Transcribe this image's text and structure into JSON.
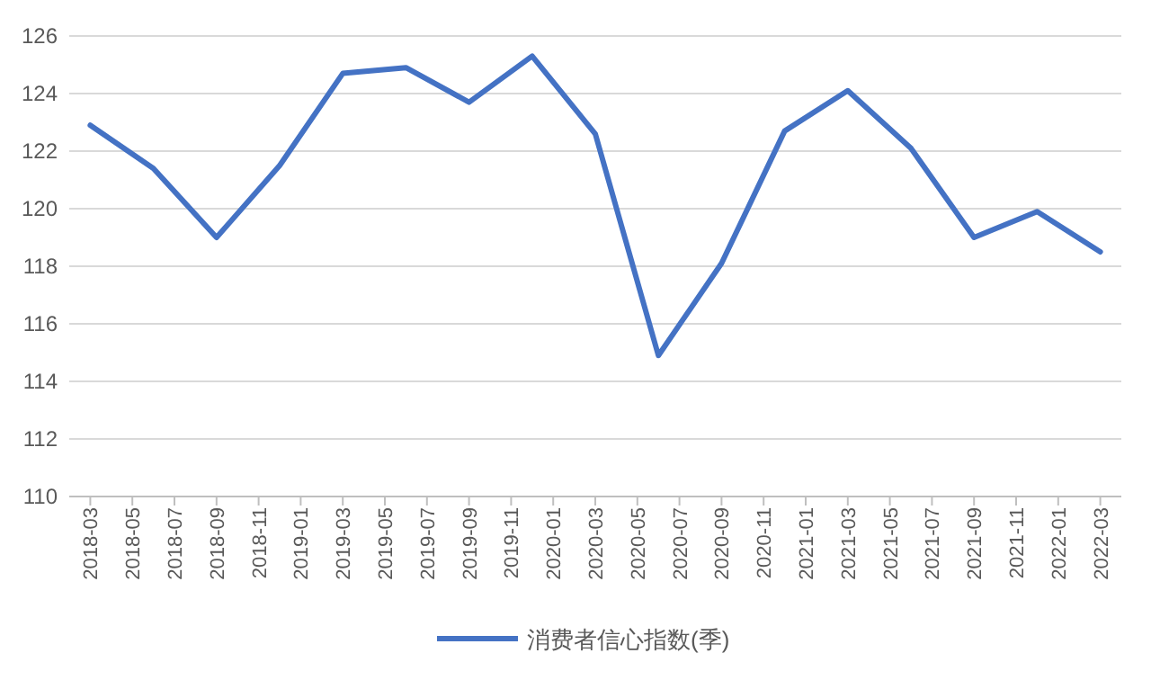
{
  "chart_data": {
    "type": "line",
    "x": [
      "2018-03",
      "2018-06",
      "2018-09",
      "2018-12",
      "2019-03",
      "2019-06",
      "2019-09",
      "2019-12",
      "2020-03",
      "2020-06",
      "2020-09",
      "2020-12",
      "2021-03",
      "2021-06",
      "2021-09",
      "2021-12",
      "2022-03"
    ],
    "series": [
      {
        "name": "消费者信心指数(季)",
        "color": "#4472c4",
        "values": [
          122.9,
          121.4,
          119.0,
          121.5,
          124.7,
          124.9,
          123.7,
          125.3,
          122.6,
          114.9,
          118.1,
          122.7,
          124.1,
          122.1,
          119.0,
          119.9,
          118.5
        ]
      }
    ],
    "xlim": [
      "2018-02",
      "2022-04"
    ],
    "xticks": [
      "2018-03",
      "2018-05",
      "2018-07",
      "2018-09",
      "2018-11",
      "2019-01",
      "2019-03",
      "2019-05",
      "2019-07",
      "2019-09",
      "2019-11",
      "2020-01",
      "2020-03",
      "2020-05",
      "2020-07",
      "2020-09",
      "2020-11",
      "2021-01",
      "2021-03",
      "2021-05",
      "2021-07",
      "2021-09",
      "2021-11",
      "2022-01",
      "2022-03"
    ],
    "ylim": [
      110,
      126
    ],
    "yticks": [
      110,
      112,
      114,
      116,
      118,
      120,
      122,
      124,
      126
    ],
    "grid": "y",
    "legend": "bottom"
  }
}
